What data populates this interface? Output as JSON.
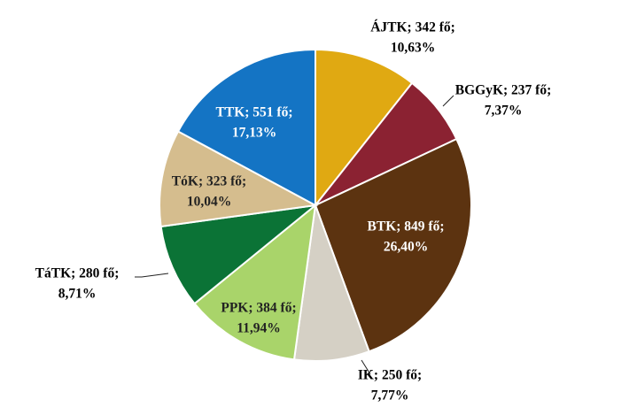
{
  "chart_data": {
    "type": "pie",
    "values": [
      342,
      237,
      849,
      250,
      384,
      280,
      323,
      551
    ],
    "value_labels": [
      "ÁJTK; 342 fő;",
      "BGGyK; 237 fő;",
      "BTK; 849 fő;",
      "IK; 250 fő;",
      "PPK; 384 fő;",
      "TáTK; 280 fő;",
      "TóK; 323 fő;",
      "TTK; 551 fő;"
    ],
    "percents": [
      10.63,
      7.37,
      26.4,
      7.77,
      11.94,
      8.71,
      10.04,
      17.13
    ],
    "percent_labels": [
      "10,63%",
      "7,37%",
      "26,40%",
      "7,77%",
      "11,94%",
      "8,71%",
      "10,04%",
      "17,13%"
    ],
    "colors": [
      "#E0A912",
      "#8B2232",
      "#5C3310",
      "#D5D0C5",
      "#A9D46A",
      "#0B7336",
      "#D5BD8E",
      "#1474C4"
    ]
  }
}
